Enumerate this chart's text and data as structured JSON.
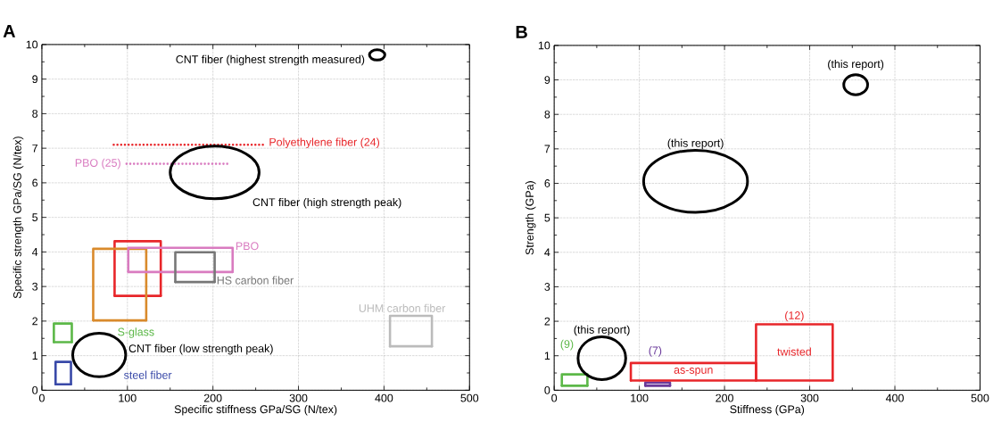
{
  "chart_data": [
    {
      "type": "line",
      "title": "A",
      "xlabel": "Specific stiffness GPa/SG (N/tex)",
      "ylabel": "Specific strength GPa/SG (N/tex)",
      "xlim": [
        0,
        500
      ],
      "ylim": [
        0,
        10
      ],
      "xticks": [
        0,
        100,
        200,
        300,
        400,
        500
      ],
      "yticks": [
        0,
        1,
        2,
        3,
        4,
        5,
        6,
        7,
        8,
        9,
        10
      ],
      "grid": true,
      "marker": "none",
      "line_style": "solid",
      "series": [
        {
          "name": "Polyethylene fiber (24)",
          "color": "#e8262a",
          "line_style": "dotted",
          "x": [
            84,
            260
          ],
          "values": [
            7.1,
            7.1
          ]
        },
        {
          "name": "PBO (25)",
          "color": "#d97bc0",
          "line_style": "dotted",
          "x": [
            99,
            218
          ],
          "values": [
            6.55,
            6.55
          ]
        },
        {
          "color": "#e8262a",
          "x": [
            85,
            85,
            139,
            139
          ],
          "values": [
            2.73,
            4.31,
            4.31,
            2.73
          ]
        },
        {
          "color": "#e8262a",
          "x": [
            85,
            139
          ],
          "values": [
            2.73,
            2.73
          ]
        },
        {
          "color": "#d98a2b",
          "x": [
            60,
            60,
            122,
            122
          ],
          "values": [
            2.02,
            4.09,
            4.09,
            2.02
          ]
        },
        {
          "color": "#d98a2b",
          "x": [
            60,
            122
          ],
          "values": [
            2.02,
            2.02
          ]
        },
        {
          "name": "PBO",
          "color": "#d97bc0",
          "x": [
            101,
            101,
            223,
            223
          ],
          "values": [
            3.42,
            4.12,
            4.12,
            3.42
          ]
        },
        {
          "color": "#d97bc0",
          "x": [
            101,
            223
          ],
          "values": [
            3.42,
            3.42
          ]
        },
        {
          "name": "HS carbon fiber",
          "color": "#777777",
          "x": [
            156,
            156,
            202,
            202
          ],
          "values": [
            3.13,
            3.99,
            3.99,
            3.13
          ]
        },
        {
          "color": "#777777",
          "x": [
            156,
            202
          ],
          "values": [
            3.13,
            3.13
          ]
        },
        {
          "name": "UHM carbon fiber",
          "color": "#bbbbbb",
          "x": [
            407,
            407,
            456,
            456
          ],
          "values": [
            1.27,
            2.15,
            2.15,
            1.27
          ]
        },
        {
          "color": "#bbbbbb",
          "x": [
            407,
            456
          ],
          "values": [
            1.27,
            1.27
          ]
        },
        {
          "name": "S-glass",
          "color": "#5cb848",
          "x": [
            14,
            14,
            35,
            35
          ],
          "values": [
            1.39,
            1.93,
            1.93,
            1.39
          ]
        },
        {
          "color": "#5cb848",
          "x": [
            14,
            35
          ],
          "values": [
            1.39,
            1.39
          ]
        },
        {
          "name": "steel fiber",
          "color": "#3949a8",
          "x": [
            16,
            16,
            34,
            34
          ],
          "values": [
            0.17,
            0.82,
            0.82,
            0.17
          ]
        },
        {
          "color": "#3949a8",
          "x": [
            16,
            34
          ],
          "values": [
            0.17,
            0.17
          ]
        }
      ],
      "annotations": [
        "CNT fiber (highest strength measured)",
        "CNT fiber (high strength peak)",
        "CNT fiber (low strength peak)"
      ]
    },
    {
      "type": "line",
      "title": "B",
      "xlabel": "Stiffness (GPa)",
      "ylabel": "Strength (GPa)",
      "xlim": [
        0,
        500
      ],
      "ylim": [
        0,
        10
      ],
      "xticks": [
        0,
        100,
        200,
        300,
        400,
        500
      ],
      "yticks": [
        0,
        1,
        2,
        3,
        4,
        5,
        6,
        7,
        8,
        9,
        10
      ],
      "grid": true,
      "marker": "none",
      "line_style": "solid",
      "annotations": [
        "(12)",
        "(this report)",
        "(this report)",
        "(this report)"
      ],
      "series": [
        {
          "name": "(9)",
          "color": "#5cb848",
          "x": [
            9,
            9,
            39,
            39
          ],
          "values": [
            0.13,
            0.46,
            0.46,
            0.13
          ]
        },
        {
          "color": "#5cb848",
          "x": [
            9,
            39
          ],
          "values": [
            0.13,
            0.13
          ]
        },
        {
          "name": "(7)",
          "color": "#6a3a9a",
          "x": [
            107,
            107,
            136,
            136
          ],
          "values": [
            0.13,
            0.22,
            0.22,
            0.13
          ]
        },
        {
          "color": "#6a3a9a",
          "x": [
            107,
            136
          ],
          "values": [
            0.13,
            0.13
          ]
        },
        {
          "name": "as-spun",
          "color": "#e8262a",
          "x": [
            90,
            90,
            237,
            237
          ],
          "values": [
            0.28,
            0.79,
            0.79,
            0.28
          ]
        },
        {
          "name": "twisted",
          "color": "#e8262a",
          "x": [
            237,
            237,
            327,
            327
          ],
          "values": [
            0.28,
            1.91,
            1.91,
            0.28
          ]
        },
        {
          "color": "#e8262a",
          "x": [
            90,
            237,
            327
          ],
          "values": [
            0.28,
            0.28,
            0.28
          ]
        }
      ]
    }
  ]
}
